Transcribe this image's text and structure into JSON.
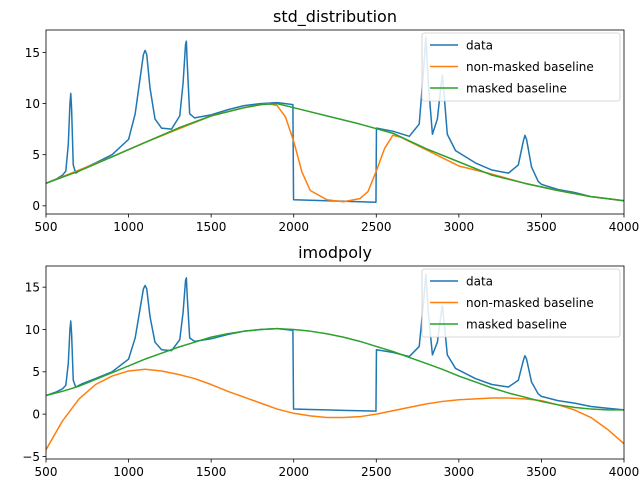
{
  "chart_data": [
    {
      "type": "line",
      "title": "std_distribution",
      "xlabel": "",
      "ylabel": "",
      "xlim": [
        500,
        4000
      ],
      "ylim": [
        -0.8,
        17.2
      ],
      "xticks": [
        500,
        1000,
        1500,
        2000,
        2500,
        3000,
        3500,
        4000
      ],
      "yticks": [
        0,
        5,
        10,
        15
      ],
      "legend": "top-right",
      "grid": false,
      "series": [
        {
          "name": "data",
          "color": "#1f77b4",
          "x": [
            500,
            560,
            600,
            620,
            635,
            645,
            650,
            655,
            665,
            680,
            720,
            800,
            900,
            1000,
            1040,
            1070,
            1090,
            1100,
            1110,
            1130,
            1160,
            1200,
            1260,
            1310,
            1330,
            1345,
            1350,
            1355,
            1370,
            1400,
            1500,
            1600,
            1700,
            1800,
            1900,
            1950,
            1995,
            1999,
            2001,
            2100,
            2200,
            2300,
            2400,
            2498,
            2501,
            2600,
            2700,
            2760,
            2785,
            2800,
            2815,
            2840,
            2870,
            2890,
            2900,
            2910,
            2930,
            2980,
            3100,
            3200,
            3300,
            3360,
            3390,
            3400,
            3410,
            3440,
            3480,
            3500,
            3600,
            3700,
            3800,
            3900,
            4000
          ],
          "y": [
            2.2,
            2.6,
            3.0,
            3.4,
            6.0,
            10.0,
            11.0,
            9.5,
            4.0,
            3.2,
            3.6,
            4.2,
            5.0,
            6.5,
            9.0,
            12.5,
            14.8,
            15.2,
            14.8,
            11.5,
            8.5,
            7.6,
            7.5,
            8.8,
            12.0,
            15.8,
            16.1,
            14.0,
            9.0,
            8.6,
            8.9,
            9.4,
            9.8,
            10.0,
            10.1,
            10.0,
            9.9,
            0.6,
            0.6,
            0.55,
            0.5,
            0.45,
            0.4,
            0.35,
            7.6,
            7.3,
            6.8,
            8.0,
            13.0,
            16.5,
            12.0,
            7.0,
            8.5,
            11.5,
            12.8,
            11.0,
            7.0,
            5.4,
            4.2,
            3.5,
            3.2,
            4.0,
            6.3,
            6.9,
            6.5,
            3.8,
            2.4,
            2.1,
            1.6,
            1.3,
            0.9,
            0.7,
            0.5
          ]
        },
        {
          "name": "non-masked baseline",
          "color": "#ff7f0e",
          "x": [
            500,
            700,
            900,
            1100,
            1300,
            1500,
            1700,
            1800,
            1850,
            1900,
            1950,
            2000,
            2050,
            2100,
            2200,
            2300,
            2400,
            2450,
            2500,
            2550,
            2600,
            2650,
            2700,
            2800,
            2900,
            3000,
            3200,
            3400,
            3600,
            3800,
            4000
          ],
          "y": [
            2.2,
            3.5,
            4.8,
            6.2,
            7.5,
            8.8,
            9.6,
            9.9,
            10.0,
            9.8,
            8.7,
            6.3,
            3.3,
            1.5,
            0.6,
            0.4,
            0.7,
            1.4,
            3.4,
            5.6,
            6.9,
            6.7,
            6.3,
            5.5,
            4.7,
            3.9,
            3.1,
            2.2,
            1.5,
            0.9,
            0.5
          ]
        },
        {
          "name": "masked baseline",
          "color": "#2ca02c",
          "x": [
            500,
            700,
            900,
            1100,
            1300,
            1500,
            1700,
            1800,
            1900,
            2000,
            2200,
            2400,
            2600,
            2800,
            3000,
            3200,
            3400,
            3600,
            3800,
            4000
          ],
          "y": [
            2.2,
            3.4,
            4.8,
            6.2,
            7.6,
            8.8,
            9.6,
            9.9,
            10.0,
            9.6,
            8.8,
            8.0,
            7.1,
            5.6,
            4.3,
            3.0,
            2.2,
            1.5,
            0.9,
            0.5
          ]
        }
      ]
    },
    {
      "type": "line",
      "title": "imodpoly",
      "xlabel": "",
      "ylabel": "",
      "xlim": [
        500,
        4000
      ],
      "ylim": [
        -5.3,
        17.5
      ],
      "xticks": [
        500,
        1000,
        1500,
        2000,
        2500,
        3000,
        3500,
        4000
      ],
      "yticks": [
        -5,
        0,
        5,
        10,
        15
      ],
      "legend": "top-right",
      "grid": false,
      "series": [
        {
          "name": "data",
          "color": "#1f77b4",
          "x": [
            500,
            560,
            600,
            620,
            635,
            645,
            650,
            655,
            665,
            680,
            720,
            800,
            900,
            1000,
            1040,
            1070,
            1090,
            1100,
            1110,
            1130,
            1160,
            1200,
            1260,
            1310,
            1330,
            1345,
            1350,
            1355,
            1370,
            1400,
            1500,
            1600,
            1700,
            1800,
            1900,
            1950,
            1995,
            1999,
            2001,
            2100,
            2200,
            2300,
            2400,
            2498,
            2501,
            2600,
            2700,
            2760,
            2785,
            2800,
            2815,
            2840,
            2870,
            2890,
            2900,
            2910,
            2930,
            2980,
            3100,
            3200,
            3300,
            3360,
            3390,
            3400,
            3410,
            3440,
            3480,
            3500,
            3600,
            3700,
            3800,
            3900,
            4000
          ],
          "y": [
            2.2,
            2.6,
            3.0,
            3.4,
            6.0,
            10.0,
            11.0,
            9.5,
            4.0,
            3.2,
            3.6,
            4.2,
            5.0,
            6.5,
            9.0,
            12.5,
            14.8,
            15.2,
            14.8,
            11.5,
            8.5,
            7.6,
            7.5,
            8.8,
            12.0,
            15.8,
            16.1,
            14.0,
            9.0,
            8.6,
            8.9,
            9.4,
            9.8,
            10.0,
            10.1,
            10.0,
            9.9,
            0.6,
            0.6,
            0.55,
            0.5,
            0.45,
            0.4,
            0.35,
            7.6,
            7.3,
            6.8,
            8.0,
            13.0,
            16.5,
            12.0,
            7.0,
            8.5,
            11.5,
            12.8,
            11.0,
            7.0,
            5.4,
            4.2,
            3.5,
            3.2,
            4.0,
            6.3,
            6.9,
            6.5,
            3.8,
            2.4,
            2.1,
            1.6,
            1.3,
            0.9,
            0.7,
            0.5
          ]
        },
        {
          "name": "non-masked baseline",
          "color": "#ff7f0e",
          "x": [
            500,
            600,
            700,
            800,
            900,
            1000,
            1100,
            1200,
            1300,
            1400,
            1500,
            1600,
            1700,
            1800,
            1900,
            2000,
            2100,
            2200,
            2300,
            2400,
            2500,
            2600,
            2700,
            2800,
            2900,
            3000,
            3100,
            3200,
            3300,
            3400,
            3500,
            3600,
            3700,
            3800,
            3900,
            4000
          ],
          "y": [
            -4.2,
            -0.8,
            1.8,
            3.5,
            4.5,
            5.1,
            5.3,
            5.1,
            4.7,
            4.2,
            3.5,
            2.7,
            2.0,
            1.3,
            0.6,
            0.1,
            -0.2,
            -0.4,
            -0.4,
            -0.3,
            0.0,
            0.4,
            0.8,
            1.2,
            1.5,
            1.7,
            1.8,
            1.9,
            1.9,
            1.8,
            1.6,
            1.1,
            0.5,
            -0.4,
            -1.8,
            -3.5
          ]
        },
        {
          "name": "masked baseline",
          "color": "#2ca02c",
          "x": [
            500,
            600,
            700,
            800,
            900,
            1000,
            1100,
            1200,
            1300,
            1400,
            1500,
            1600,
            1700,
            1800,
            1900,
            2000,
            2100,
            2200,
            2300,
            2400,
            2500,
            2600,
            2700,
            2800,
            2900,
            3000,
            3100,
            3200,
            3300,
            3400,
            3500,
            3600,
            3700,
            3800,
            3900,
            4000
          ],
          "y": [
            2.2,
            2.7,
            3.3,
            4.1,
            4.9,
            5.7,
            6.5,
            7.2,
            7.9,
            8.5,
            9.1,
            9.5,
            9.8,
            10.0,
            10.1,
            10.0,
            9.8,
            9.5,
            9.1,
            8.6,
            8.0,
            7.4,
            6.7,
            6.0,
            5.3,
            4.5,
            3.8,
            3.1,
            2.5,
            2.0,
            1.5,
            1.1,
            0.8,
            0.6,
            0.5,
            0.5
          ]
        }
      ]
    }
  ]
}
